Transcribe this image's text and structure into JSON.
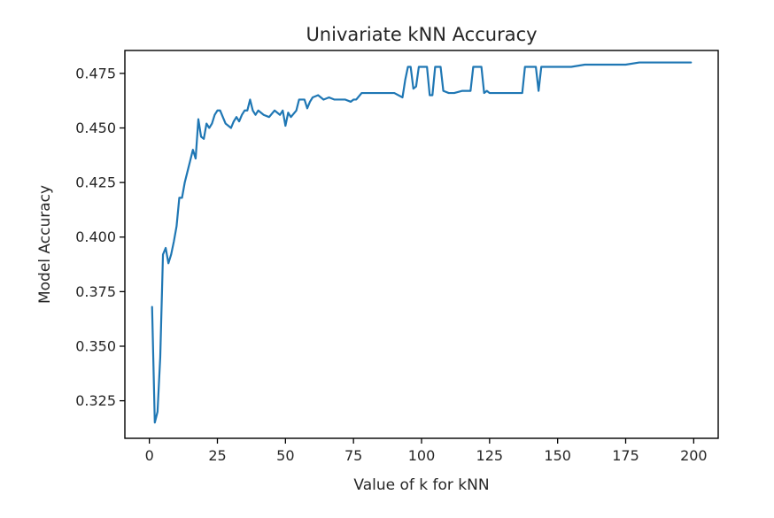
{
  "chart_data": {
    "type": "line",
    "title": "Univariate kNN Accuracy",
    "xlabel": "Value of k for kNN",
    "ylabel": "Model Accuracy",
    "xlim": [
      -9,
      209
    ],
    "ylim": [
      0.3078,
      0.4855
    ],
    "xticks": [
      0,
      25,
      50,
      75,
      100,
      125,
      150,
      175,
      200
    ],
    "xtick_labels": [
      "0",
      "25",
      "50",
      "75",
      "100",
      "125",
      "150",
      "175",
      "200"
    ],
    "yticks": [
      0.325,
      0.35,
      0.375,
      0.4,
      0.425,
      0.45,
      0.475
    ],
    "ytick_labels": [
      "0.325",
      "0.350",
      "0.375",
      "0.400",
      "0.425",
      "0.450",
      "0.475"
    ],
    "grid": false,
    "series": [
      {
        "color": "#1f77b4",
        "x": [
          1,
          2,
          3,
          4,
          5,
          6,
          7,
          8,
          9,
          10,
          11,
          12,
          13,
          14,
          15,
          16,
          17,
          18,
          19,
          20,
          21,
          22,
          23,
          24,
          25,
          26,
          27,
          28,
          29,
          30,
          31,
          32,
          33,
          34,
          35,
          36,
          37,
          38,
          39,
          40,
          42,
          44,
          46,
          48,
          49,
          50,
          51,
          52,
          54,
          55,
          56,
          57,
          58,
          59,
          60,
          62,
          64,
          66,
          68,
          70,
          72,
          74,
          75,
          76,
          78,
          80,
          85,
          90,
          93,
          94,
          95,
          96,
          97,
          98,
          99,
          100,
          101,
          102,
          103,
          104,
          105,
          106,
          107,
          108,
          110,
          112,
          115,
          118,
          119,
          120,
          121,
          122,
          123,
          124,
          125,
          130,
          135,
          137,
          138,
          139,
          140,
          141,
          142,
          143,
          144,
          145,
          146,
          150,
          155,
          160,
          165,
          170,
          175,
          180,
          185,
          190,
          195,
          199
        ],
        "y": [
          0.368,
          0.315,
          0.32,
          0.345,
          0.392,
          0.395,
          0.388,
          0.392,
          0.398,
          0.405,
          0.418,
          0.418,
          0.425,
          0.43,
          0.435,
          0.44,
          0.436,
          0.454,
          0.446,
          0.445,
          0.452,
          0.45,
          0.452,
          0.456,
          0.458,
          0.458,
          0.455,
          0.452,
          0.451,
          0.45,
          0.453,
          0.455,
          0.453,
          0.456,
          0.458,
          0.458,
          0.463,
          0.458,
          0.456,
          0.458,
          0.456,
          0.455,
          0.458,
          0.456,
          0.458,
          0.451,
          0.457,
          0.455,
          0.458,
          0.463,
          0.463,
          0.463,
          0.459,
          0.462,
          0.464,
          0.465,
          0.463,
          0.464,
          0.463,
          0.463,
          0.463,
          0.462,
          0.463,
          0.463,
          0.466,
          0.466,
          0.466,
          0.466,
          0.464,
          0.472,
          0.478,
          0.478,
          0.468,
          0.469,
          0.478,
          0.478,
          0.478,
          0.478,
          0.465,
          0.465,
          0.478,
          0.478,
          0.478,
          0.467,
          0.466,
          0.466,
          0.467,
          0.467,
          0.478,
          0.478,
          0.478,
          0.478,
          0.466,
          0.467,
          0.466,
          0.466,
          0.466,
          0.466,
          0.478,
          0.478,
          0.478,
          0.478,
          0.478,
          0.467,
          0.478,
          0.478,
          0.478,
          0.478,
          0.478,
          0.479,
          0.479,
          0.479,
          0.479,
          0.48,
          0.48,
          0.48,
          0.48,
          0.48
        ]
      }
    ]
  }
}
